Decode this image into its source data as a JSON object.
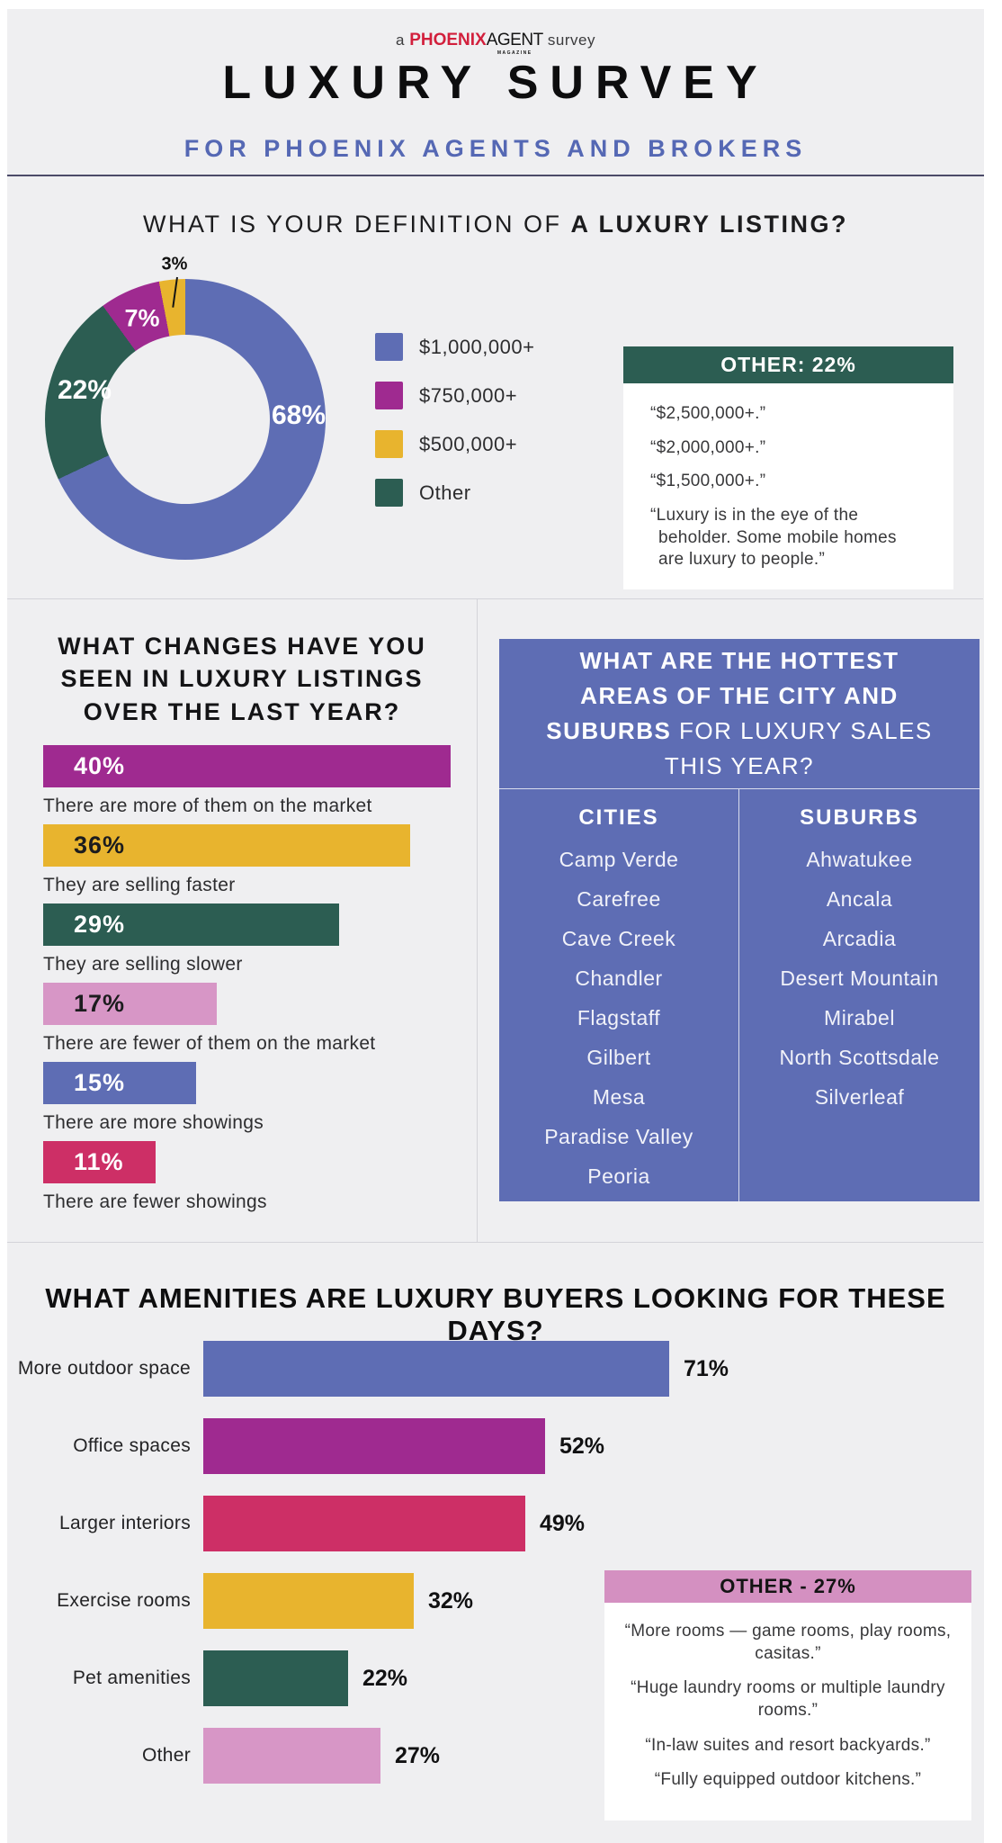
{
  "header": {
    "logo_prefix": "a ",
    "logo_brand_red": "PHOENIX",
    "logo_brand_black": "AGENT",
    "logo_brand_sub": "MAGAZINE",
    "logo_suffix": " survey",
    "title": "LUXURY SURVEY",
    "subtitle": "FOR PHOENIX AGENTS AND BROKERS"
  },
  "palette": {
    "blue": "#5e6db4",
    "magenta": "#9f2a90",
    "gold": "#e8b42e",
    "teal": "#2c5d52",
    "crimson": "#cd2f66",
    "pink": "#d796c6",
    "pink_header": "#d490c1",
    "red": "#d21f3c",
    "background": "#efeff1"
  },
  "section_definition": {
    "title_regular": "WHAT IS YOUR DEFINITION OF ",
    "title_bold": "A LUXURY LISTING?",
    "legend": [
      {
        "label": "$1,000,000+",
        "color": "#5e6db4"
      },
      {
        "label": "$750,000+",
        "color": "#9f2a90"
      },
      {
        "label": "$500,000+",
        "color": "#e8b42e"
      },
      {
        "label": "Other",
        "color": "#2c5d52"
      }
    ],
    "callout": {
      "header": "OTHER: 22%",
      "quotes": [
        "“$2,500,000+.”",
        "“$2,000,000+.”",
        "“$1,500,000+.”",
        "“Luxury is in the eye of the beholder. Some mobile homes are luxury to people.”"
      ]
    }
  },
  "section_changes": {
    "title": "WHAT CHANGES HAVE YOU SEEN IN LUXURY LISTINGS OVER THE LAST YEAR?"
  },
  "section_areas": {
    "title_bold": "WHAT ARE THE HOTTEST AREAS OF THE CITY AND SUBURBS",
    "title_regular": " FOR LUXURY SALES THIS YEAR?",
    "cities_header": "CITIES",
    "suburbs_header": "SUBURBS",
    "cities": [
      "Camp Verde",
      "Carefree",
      "Cave Creek",
      "Chandler",
      "Flagstaff",
      "Gilbert",
      "Mesa",
      "Paradise Valley",
      "Peoria"
    ],
    "suburbs": [
      "Ahwatukee",
      "Ancala",
      "Arcadia",
      "Desert Mountain",
      "Mirabel",
      "North Scottsdale",
      "Silverleaf"
    ]
  },
  "section_amenities": {
    "title": "WHAT AMENITIES ARE LUXURY BUYERS LOOKING FOR THESE DAYS?",
    "callout": {
      "header": "OTHER - 27%",
      "quotes": [
        "“More rooms — game rooms, play rooms, casitas.”",
        "“Huge laundry rooms or multiple laundry rooms.”",
        "“In-law suites and resort backyards.”",
        "“Fully equipped outdoor kitchens.”"
      ]
    }
  },
  "chart_data": [
    {
      "type": "pie",
      "title": "WHAT IS YOUR DEFINITION OF A LUXURY LISTING?",
      "donut": true,
      "start_angle": "top, clockwise",
      "slices": [
        {
          "label": "$1,000,000+",
          "value": 68,
          "value_label": "68%",
          "color": "#5e6db4"
        },
        {
          "label": "Other",
          "value": 22,
          "value_label": "22%",
          "color": "#2c5d52"
        },
        {
          "label": "$750,000+",
          "value": 7,
          "value_label": "7%",
          "color": "#9f2a90"
        },
        {
          "label": "$500,000+",
          "value": 3,
          "value_label": "3%",
          "color": "#e8b42e"
        }
      ]
    },
    {
      "type": "bar",
      "orientation": "horizontal",
      "title": "WHAT CHANGES HAVE YOU SEEN IN LUXURY LISTINGS OVER THE LAST YEAR?",
      "xlim": [
        0,
        40
      ],
      "items": [
        {
          "label": "There are more of them on the market",
          "value": 40,
          "value_label": "40%",
          "color": "#9f2a90",
          "value_color": "#ffffff"
        },
        {
          "label": "They are selling faster",
          "value": 36,
          "value_label": "36%",
          "color": "#e8b42e",
          "value_color": "#1c1c1e"
        },
        {
          "label": "They are selling slower",
          "value": 29,
          "value_label": "29%",
          "color": "#2c5d52",
          "value_color": "#ffffff"
        },
        {
          "label": "There are fewer of them on the market",
          "value": 17,
          "value_label": "17%",
          "color": "#d796c6",
          "value_color": "#1c1c1e"
        },
        {
          "label": "There are more showings",
          "value": 15,
          "value_label": "15%",
          "color": "#5e6db4",
          "value_color": "#ffffff"
        },
        {
          "label": "There are fewer showings",
          "value": 11,
          "value_label": "11%",
          "color": "#cd2f66",
          "value_color": "#ffffff"
        }
      ]
    },
    {
      "type": "bar",
      "orientation": "horizontal",
      "title": "WHAT AMENITIES ARE LUXURY BUYERS LOOKING FOR THESE DAYS?",
      "xlim": [
        0,
        71
      ],
      "items": [
        {
          "label": "More outdoor space",
          "value": 71,
          "value_label": "71%",
          "color": "#5e6db4"
        },
        {
          "label": "Office spaces",
          "value": 52,
          "value_label": "52%",
          "color": "#9f2a90"
        },
        {
          "label": "Larger interiors",
          "value": 49,
          "value_label": "49%",
          "color": "#cd2f66"
        },
        {
          "label": "Exercise rooms",
          "value": 32,
          "value_label": "32%",
          "color": "#e8b42e"
        },
        {
          "label": "Pet amenities",
          "value": 22,
          "value_label": "22%",
          "color": "#2c5d52"
        },
        {
          "label": "Other",
          "value": 27,
          "value_label": "27%",
          "color": "#d796c6"
        }
      ]
    }
  ]
}
